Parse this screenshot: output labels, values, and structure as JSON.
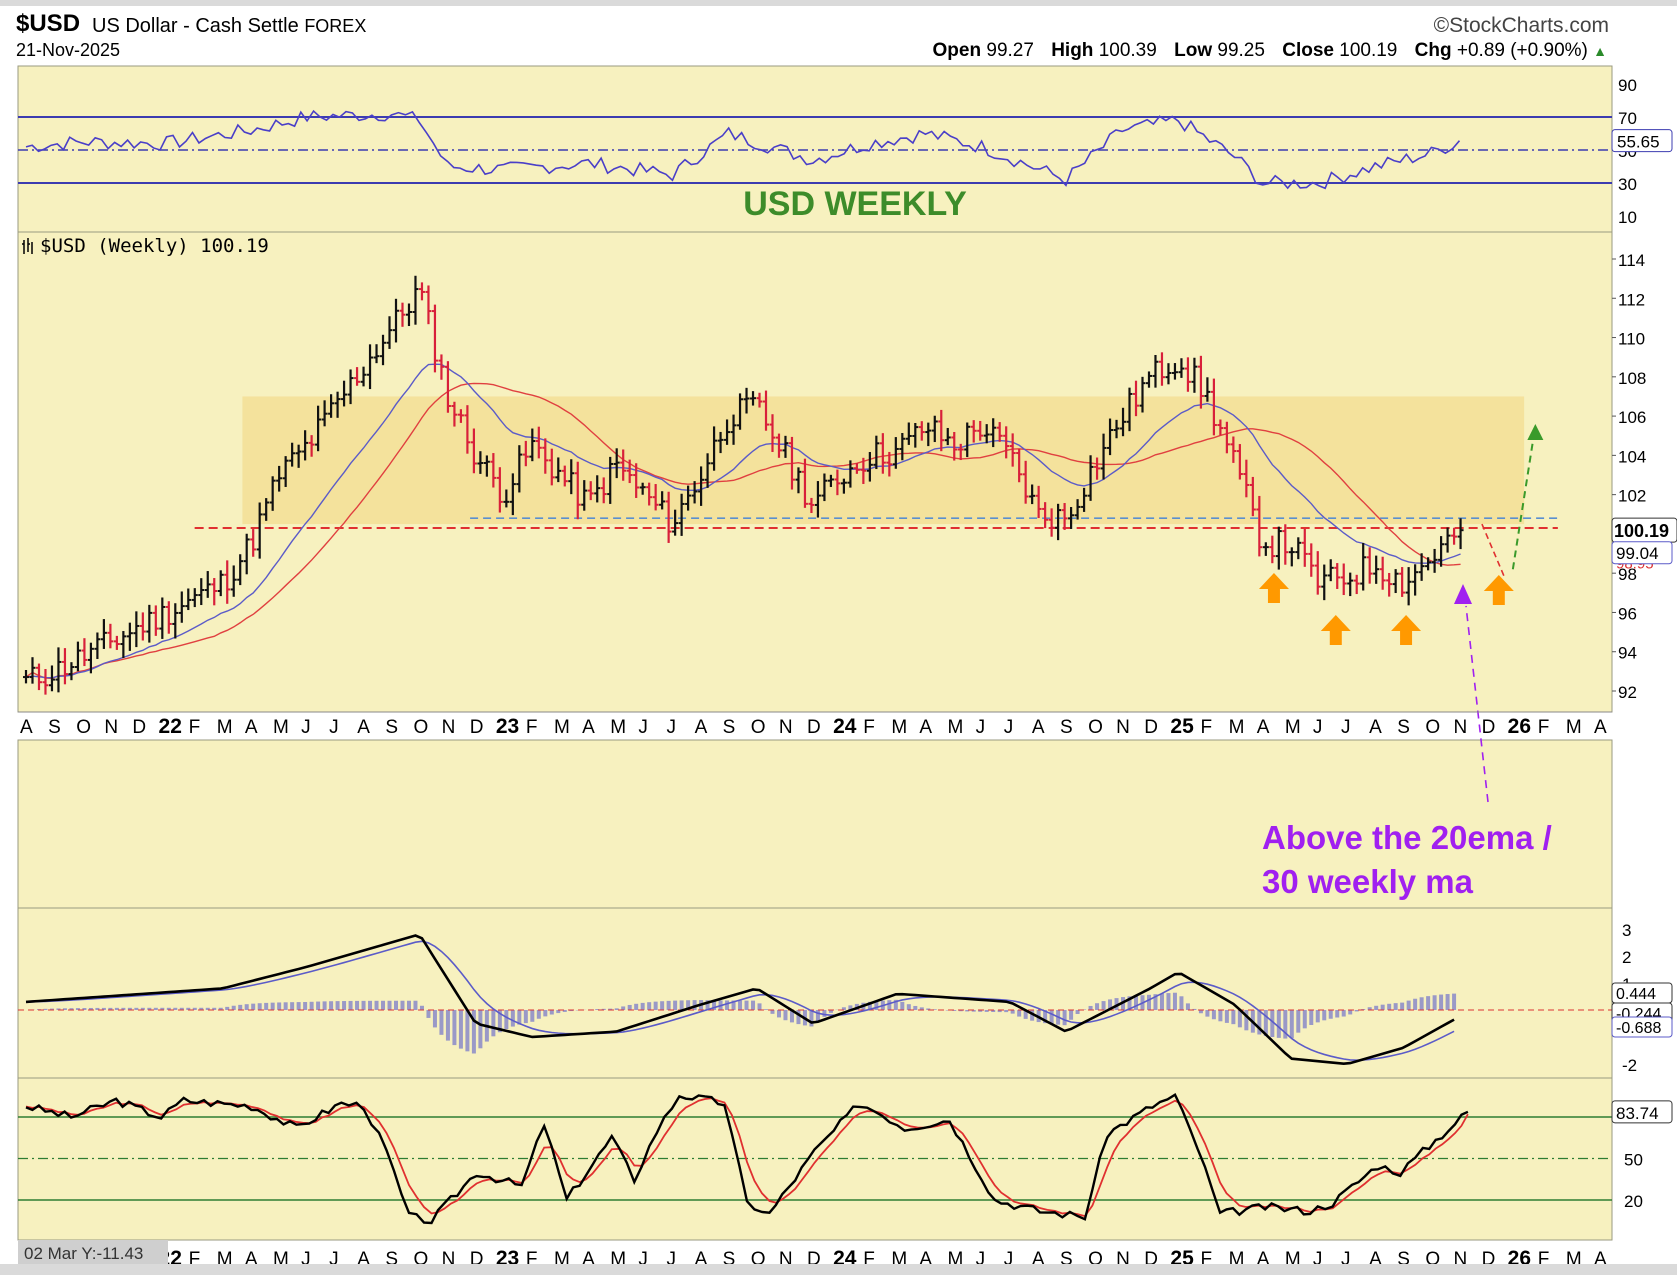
{
  "header": {
    "symbol": "$USD",
    "name": "US Dollar - Cash Settle",
    "exchange": "FOREX",
    "date": "21-Nov-2025",
    "logo": "©StockCharts.com",
    "open_label": "Open",
    "open": "99.27",
    "high_label": "High",
    "high": "100.39",
    "low_label": "Low",
    "low": "99.25",
    "close_label": "Close",
    "close": "100.19",
    "chg_label": "Chg",
    "chg": "+0.89 (+0.90%)"
  },
  "annotations": {
    "title": "USD WEEKLY",
    "price_legend": "$USD (Weekly) 100.19",
    "note_line1": "Above the 20ema /",
    "note_line2": "30 weekly ma",
    "cursor_readout": "02 Mar Y:-11.43"
  },
  "colors": {
    "panel_bg": "#f7f1bf",
    "zone_fill": "#f3dc90",
    "up_bar": "#111111",
    "down_bar": "#d8203a",
    "ema_blue": "#5b5bc8",
    "ma_red": "#e04040",
    "rsi_line": "#4a3fc8",
    "note_purple": "#a020f0",
    "title_green": "#3d8c2a",
    "arrow_orange": "#ff9900",
    "arrow_green": "#3a9a2a"
  },
  "chart_data": [
    {
      "type": "line",
      "panel": "RSI(14)",
      "ylim": [
        0,
        100
      ],
      "y_ticks": [
        "90",
        "70",
        "50",
        "30",
        "10"
      ],
      "overbought": 70,
      "oversold": 30,
      "midline": 50,
      "last_value": "55.65",
      "x": [
        "2021-08",
        "2021-10",
        "2022-01",
        "2022-04",
        "2022-06",
        "2022-09",
        "2022-10",
        "2022-11",
        "2023-01",
        "2023-04",
        "2023-07",
        "2023-09",
        "2023-12",
        "2024-02",
        "2024-04",
        "2024-06",
        "2024-09",
        "2024-11",
        "2025-01",
        "2025-03",
        "2025-04",
        "2025-06",
        "2025-08",
        "2025-10",
        "2025-11"
      ],
      "y": [
        52,
        55,
        54,
        62,
        70,
        72,
        68,
        40,
        38,
        42,
        35,
        60,
        44,
        54,
        60,
        52,
        32,
        62,
        68,
        46,
        30,
        30,
        40,
        48,
        55.65
      ]
    },
    {
      "type": "bar",
      "subtype": "ohlc",
      "panel": "price",
      "title": "$USD (Weekly) 100.19",
      "ylim": [
        91,
        115.5
      ],
      "y_ticks": [
        "114",
        "112",
        "110",
        "108",
        "106",
        "104",
        "102",
        "100",
        "98",
        "96",
        "94",
        "92"
      ],
      "x_ticks": [
        "A",
        "S",
        "O",
        "N",
        "D",
        "22",
        "F",
        "M",
        "A",
        "M",
        "J",
        "J",
        "A",
        "S",
        "O",
        "N",
        "D",
        "23",
        "F",
        "M",
        "A",
        "M",
        "J",
        "J",
        "A",
        "S",
        "O",
        "N",
        "D",
        "24",
        "F",
        "M",
        "A",
        "M",
        "J",
        "J",
        "A",
        "S",
        "O",
        "N",
        "D",
        "25",
        "F",
        "M",
        "A",
        "M",
        "J",
        "J",
        "A",
        "S",
        "O",
        "N",
        "D",
        "26",
        "F",
        "M",
        "A"
      ],
      "close_path": {
        "x": [
          "2021-08",
          "2021-09",
          "2021-11",
          "2022-01",
          "2022-03",
          "2022-04",
          "2022-05",
          "2022-06",
          "2022-07",
          "2022-08",
          "2022-09",
          "2022-10",
          "2022-11",
          "2022-12",
          "2023-01",
          "2023-02",
          "2023-03",
          "2023-04",
          "2023-05",
          "2023-06",
          "2023-07",
          "2023-08",
          "2023-09",
          "2023-10",
          "2023-11",
          "2023-12",
          "2024-01",
          "2024-02",
          "2024-03",
          "2024-04",
          "2024-05",
          "2024-06",
          "2024-07",
          "2024-08",
          "2024-09",
          "2024-10",
          "2024-11",
          "2024-12",
          "2025-01",
          "2025-02",
          "2025-03",
          "2025-04",
          "2025-05",
          "2025-06",
          "2025-07",
          "2025-08",
          "2025-09",
          "2025-10",
          "2025-11"
        ],
        "y": [
          92.5,
          93.0,
          94.5,
          96.0,
          97.5,
          99.5,
          103.0,
          104.5,
          106.5,
          108.5,
          110.5,
          112.5,
          107.0,
          104.0,
          102.0,
          104.5,
          103.0,
          101.5,
          103.5,
          102.0,
          100.5,
          103.0,
          106.0,
          106.5,
          104.0,
          101.5,
          103.0,
          104.0,
          104.2,
          105.5,
          104.5,
          105.5,
          104.0,
          101.0,
          100.8,
          103.5,
          106.0,
          108.0,
          109.0,
          107.0,
          103.5,
          99.5,
          99.5,
          97.5,
          97.8,
          98.5,
          97.5,
          98.8,
          100.19
        ]
      },
      "ema20_last": "99.04",
      "ma30_last": "98.95",
      "resistance_zone": [
        100.5,
        107
      ],
      "support_line": 100.3,
      "dashed_blue_line": 100.8,
      "last_close": "100.19"
    },
    {
      "type": "line",
      "panel": "MACD",
      "y_ticks": [
        "3",
        "2",
        "1",
        "-2"
      ],
      "last_values": [
        "0.444",
        "-0.244",
        "-0.688"
      ],
      "series": [
        {
          "values_x": [
            "2021-08",
            "2022-03",
            "2022-06",
            "2022-10",
            "2022-12",
            "2023-02",
            "2023-05",
            "2023-08",
            "2023-10",
            "2023-12",
            "2024-03",
            "2024-07",
            "2024-09",
            "2024-12",
            "2025-01",
            "2025-03",
            "2025-05",
            "2025-07",
            "2025-09",
            "2025-11"
          ],
          "values": [
            0.3,
            0.8,
            1.6,
            2.8,
            -0.5,
            -1.0,
            -0.8,
            0.2,
            0.8,
            -0.5,
            0.6,
            0.3,
            -0.8,
            0.8,
            1.4,
            0.2,
            -1.8,
            -2.0,
            -1.4,
            -0.244
          ]
        }
      ]
    },
    {
      "type": "line",
      "panel": "Slow Stochastic",
      "y_ticks": [
        "50",
        "20"
      ],
      "last_value": "83.74",
      "levels": [
        80,
        50,
        20
      ]
    }
  ]
}
